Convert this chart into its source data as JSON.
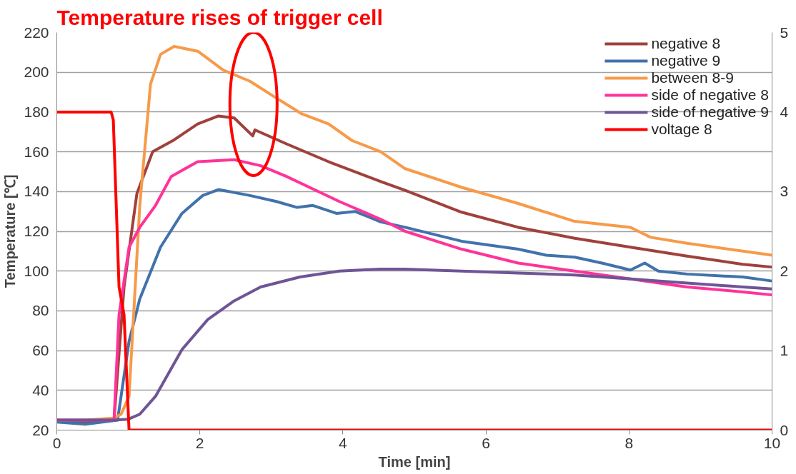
{
  "chart_data": {
    "type": "line",
    "title": "Temperature rises of trigger cell",
    "xlabel": "Time [min]",
    "ylabel": "Temperature [℃]",
    "xlim": [
      0,
      10
    ],
    "xticks": [
      0,
      2,
      4,
      6,
      8,
      10
    ],
    "ylim": [
      20,
      220
    ],
    "yticks": [
      20,
      40,
      60,
      80,
      100,
      120,
      140,
      160,
      180,
      200,
      220
    ],
    "y2lim": [
      0,
      5
    ],
    "y2ticks": [
      0,
      1,
      2,
      3,
      4,
      5
    ],
    "grid": "y",
    "legend": "top right",
    "line_style": "solid",
    "marker": "none",
    "series": [
      {
        "name": "negative 8",
        "color": "#a0413c",
        "x": [
          0,
          0.4,
          0.8,
          0.94,
          1.12,
          1.34,
          1.64,
          1.97,
          2.26,
          2.48,
          2.74,
          2.77,
          3.21,
          3.8,
          4.53,
          4.87,
          5.66,
          6.45,
          7.24,
          8.02,
          8.81,
          9.59,
          10
        ],
        "values": [
          25,
          24,
          25,
          92,
          139,
          160,
          166,
          174,
          178,
          177,
          168,
          171,
          164,
          155,
          145,
          140.6,
          129.6,
          122,
          116.5,
          112,
          107.5,
          103.4,
          102
        ]
      },
      {
        "name": "negative 9",
        "color": "#4172ac",
        "x": [
          0,
          0.4,
          0.85,
          1.01,
          1.16,
          1.45,
          1.75,
          2.04,
          2.26,
          2.7,
          3.07,
          3.36,
          3.58,
          3.91,
          4.17,
          4.53,
          4.87,
          5.66,
          6.45,
          6.84,
          7.24,
          7.62,
          8.02,
          8.22,
          8.41,
          8.81,
          9.59,
          10
        ],
        "values": [
          24,
          23,
          25,
          64.6,
          86,
          112,
          129,
          138,
          141,
          138,
          135,
          132,
          133,
          129,
          130,
          124.7,
          122,
          115,
          111,
          108,
          107,
          104,
          100.5,
          104,
          100,
          98.5,
          97,
          95
        ]
      },
      {
        "name": "between 8-9",
        "color": "#f79a49",
        "x": [
          0,
          0.4,
          0.79,
          0.9,
          1.01,
          1.16,
          1.31,
          1.45,
          1.64,
          1.97,
          2.33,
          2.7,
          3.07,
          3.43,
          3.8,
          4.13,
          4.53,
          4.87,
          5.67,
          6.45,
          7.24,
          8.02,
          8.3,
          8.81,
          9.59,
          10
        ],
        "values": [
          25,
          25,
          26,
          28,
          37,
          133,
          194,
          209,
          213,
          210.6,
          201,
          195.5,
          187,
          179,
          174,
          165.6,
          160,
          151.5,
          142,
          134,
          125,
          122,
          117,
          114,
          110,
          108
        ]
      },
      {
        "name": "side of negative 8",
        "color": "#ff3399",
        "x": [
          0,
          0.4,
          0.8,
          0.87,
          1.01,
          1.16,
          1.38,
          1.6,
          1.97,
          2.48,
          2.85,
          3.21,
          3.95,
          4.53,
          4.87,
          5.66,
          6.45,
          7.24,
          8.02,
          8.81,
          9.59,
          10
        ],
        "values": [
          25,
          25,
          25,
          78,
          112,
          122,
          133,
          147.6,
          155,
          156,
          153,
          147.6,
          135,
          126,
          120,
          111,
          104,
          100,
          96,
          92,
          89.5,
          88
        ]
      },
      {
        "name": "side of negative 9",
        "color": "#6f5496",
        "x": [
          0,
          0.4,
          0.8,
          1.0,
          1.16,
          1.38,
          1.75,
          2.11,
          2.48,
          2.85,
          3.4,
          3.95,
          4.53,
          4.87,
          5.66,
          6.45,
          7.24,
          8.02,
          8.81,
          9.59,
          10
        ],
        "values": [
          25,
          25,
          25,
          25.5,
          28,
          37,
          60.5,
          75.6,
          85,
          92,
          97,
          100,
          101,
          101,
          100,
          99,
          98,
          96,
          94,
          92,
          91
        ]
      },
      {
        "name": "voltage 8",
        "color": "#ff0000",
        "axis": "y2",
        "x": [
          0,
          0.76,
          0.79,
          0.87,
          0.94,
          1.01,
          10
        ],
        "values": [
          4,
          4,
          3.9,
          1.8,
          1.45,
          0,
          0
        ]
      }
    ]
  }
}
